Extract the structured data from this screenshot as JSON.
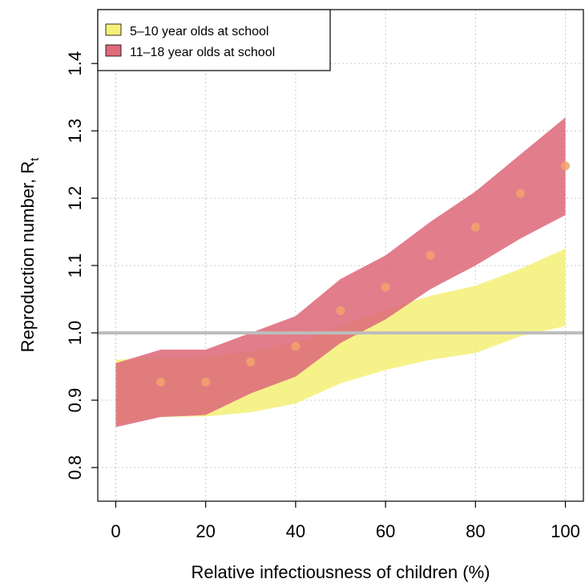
{
  "chart_data": {
    "type": "area",
    "xlabel": "Relative infectiousness of children (%)",
    "ylabel": "Reproduction number, R",
    "ylabel_subscript": "t",
    "xlim": [
      0,
      100
    ],
    "ylim": [
      0.75,
      1.48
    ],
    "xticks": [
      0,
      20,
      40,
      60,
      80,
      100
    ],
    "yticks": [
      0.8,
      0.9,
      1.0,
      1.1,
      1.2,
      1.3,
      1.4
    ],
    "x_tick_labels": [
      "0",
      "20",
      "40",
      "60",
      "80",
      "100"
    ],
    "y_tick_labels": [
      "0.8",
      "0.9",
      "1.0",
      "1.1",
      "1.2",
      "1.3",
      "1.4"
    ],
    "grid": true,
    "reference_line": {
      "y": 1.0,
      "color": "#bdbdbd"
    },
    "legend_position": "top-left",
    "x": [
      0,
      10,
      20,
      30,
      40,
      50,
      60,
      70,
      80,
      90,
      100
    ],
    "series": [
      {
        "name": "5–10 year olds at school",
        "color": "#f5f07a",
        "lower": [
          0.865,
          0.875,
          0.876,
          0.882,
          0.895,
          0.925,
          0.945,
          0.96,
          0.97,
          0.995,
          1.01
        ],
        "upper": [
          0.96,
          0.963,
          0.964,
          0.973,
          0.985,
          1.01,
          1.035,
          1.055,
          1.07,
          1.095,
          1.125
        ]
      },
      {
        "name": "11–18 year olds at school",
        "color": "#de6b7b",
        "lower": [
          0.86,
          0.875,
          0.878,
          0.91,
          0.935,
          0.985,
          1.02,
          1.065,
          1.1,
          1.14,
          1.175
        ],
        "upper": [
          0.955,
          0.975,
          0.975,
          1.0,
          1.025,
          1.08,
          1.115,
          1.165,
          1.21,
          1.265,
          1.32
        ]
      }
    ],
    "points": {
      "color": "#f2a36c",
      "x": [
        10,
        20,
        30,
        40,
        50,
        60,
        70,
        80,
        90,
        100
      ],
      "y": [
        0.927,
        0.927,
        0.957,
        0.98,
        1.033,
        1.068,
        1.115,
        1.157,
        1.207,
        1.248
      ]
    }
  }
}
